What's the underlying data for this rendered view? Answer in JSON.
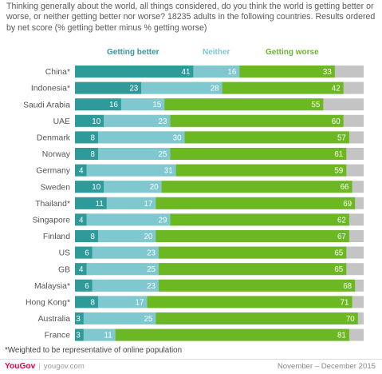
{
  "header": {
    "question": "Thinking generally about the world, all things considered, do you think the world is getting better or worse, or neither getting better nor worse? 18235 adults in the following countries. Results ordered by net score (% getting better minus % getting worse)"
  },
  "colors": {
    "better": "#2e9a9a",
    "neither": "#7fc8cf",
    "worse": "#6cb823",
    "remainder": "#c4c4c4"
  },
  "chart_data": {
    "type": "bar",
    "orientation": "horizontal",
    "stacked": true,
    "grid": false,
    "legend_position": "top",
    "xlim": [
      0,
      100
    ],
    "categories": [
      "China*",
      "Indonesia*",
      "Saudi Arabia",
      "UAE",
      "Denmark",
      "Norway",
      "Germany",
      "Sweden",
      "Thailand*",
      "Singapore",
      "Finland",
      "US",
      "GB",
      "Malaysia*",
      "Hong Kong*",
      "Australia",
      "France"
    ],
    "series": [
      {
        "name": "Getting better",
        "values": [
          41,
          23,
          16,
          10,
          8,
          8,
          4,
          10,
          11,
          4,
          8,
          6,
          4,
          6,
          8,
          3,
          3
        ]
      },
      {
        "name": "Neither",
        "values": [
          16,
          28,
          15,
          23,
          30,
          25,
          31,
          20,
          17,
          29,
          20,
          23,
          25,
          23,
          17,
          25,
          11
        ]
      },
      {
        "name": "Getting worse",
        "values": [
          33,
          42,
          55,
          60,
          57,
          61,
          59,
          66,
          69,
          62,
          67,
          65,
          65,
          68,
          71,
          70,
          81
        ]
      }
    ]
  },
  "footer": {
    "footnote": "*Weighted to be representative of online population",
    "brand": "YouGov",
    "separator": "|",
    "url": "yougov.com",
    "date_range": "November – December 2015"
  }
}
